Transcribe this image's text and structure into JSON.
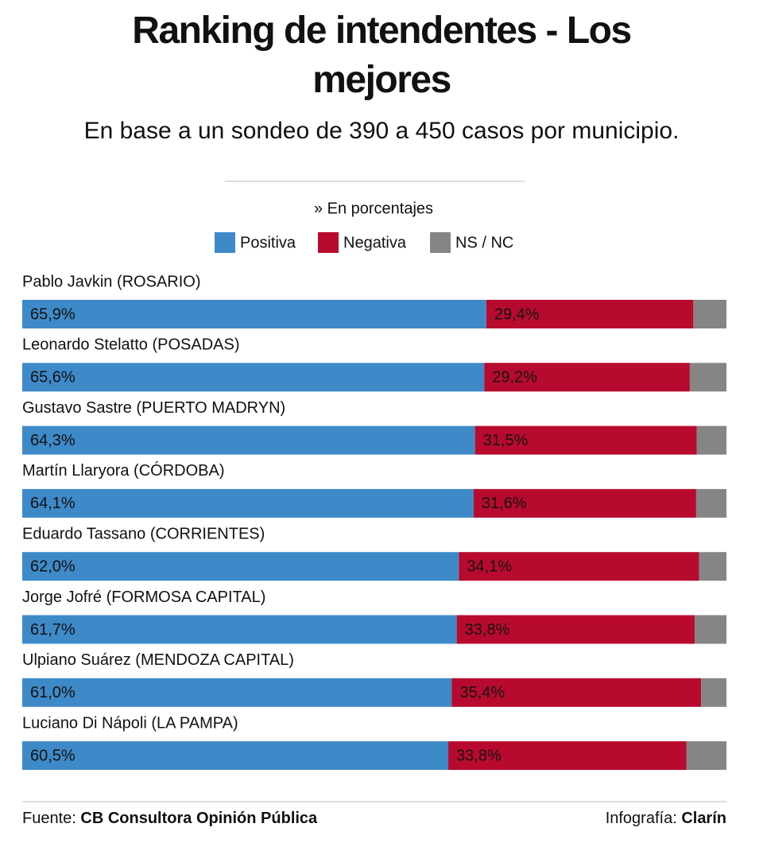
{
  "chart_data": {
    "type": "stacked-bar",
    "title": "Ranking de intendentes - Los mejores",
    "subtitle": "En base a un sondeo de 390 a 450 casos por municipio.",
    "note": "» En porcentajes",
    "categories": [
      "Pablo Javkin (ROSARIO)",
      "Leonardo Stelatto (POSADAS)",
      "Gustavo Sastre (PUERTO MADRYN)",
      "Martín Llaryora (CÓRDOBA)",
      "Eduardo Tassano (CORRIENTES)",
      "Jorge Jofré (FORMOSA CAPITAL)",
      "Ulpiano Suárez (MENDOZA CAPITAL)",
      "Luciano Di Nápoli (LA PAMPA)"
    ],
    "xlim": [
      0,
      100
    ],
    "series": [
      {
        "name": "Positiva",
        "color": "#3e8ac9",
        "values": [
          65.9,
          65.6,
          64.3,
          64.1,
          62.0,
          61.7,
          61.0,
          60.5
        ],
        "value_labels": [
          "65,9%",
          "65,6%",
          "64,3%",
          "64,1%",
          "62,0%",
          "61,7%",
          "61,0%",
          "60,5%"
        ]
      },
      {
        "name": "Negativa",
        "color": "#b80a2e",
        "values": [
          29.4,
          29.2,
          31.5,
          31.6,
          34.1,
          33.8,
          35.4,
          33.8
        ],
        "value_labels": [
          "29,4%",
          "29,2%",
          "31,5%",
          "31,6%",
          "34,1%",
          "33,8%",
          "35,4%",
          "33,8%"
        ]
      },
      {
        "name": "NS / NC",
        "color": "#858585",
        "values": [
          4.7,
          5.2,
          4.2,
          4.3,
          3.9,
          4.5,
          3.6,
          5.7
        ]
      }
    ]
  },
  "footer": {
    "source_label": "Fuente:",
    "source": "CB Consultora Opinión Pública",
    "credit_label": "Infografía:",
    "credit": "Clarín"
  }
}
